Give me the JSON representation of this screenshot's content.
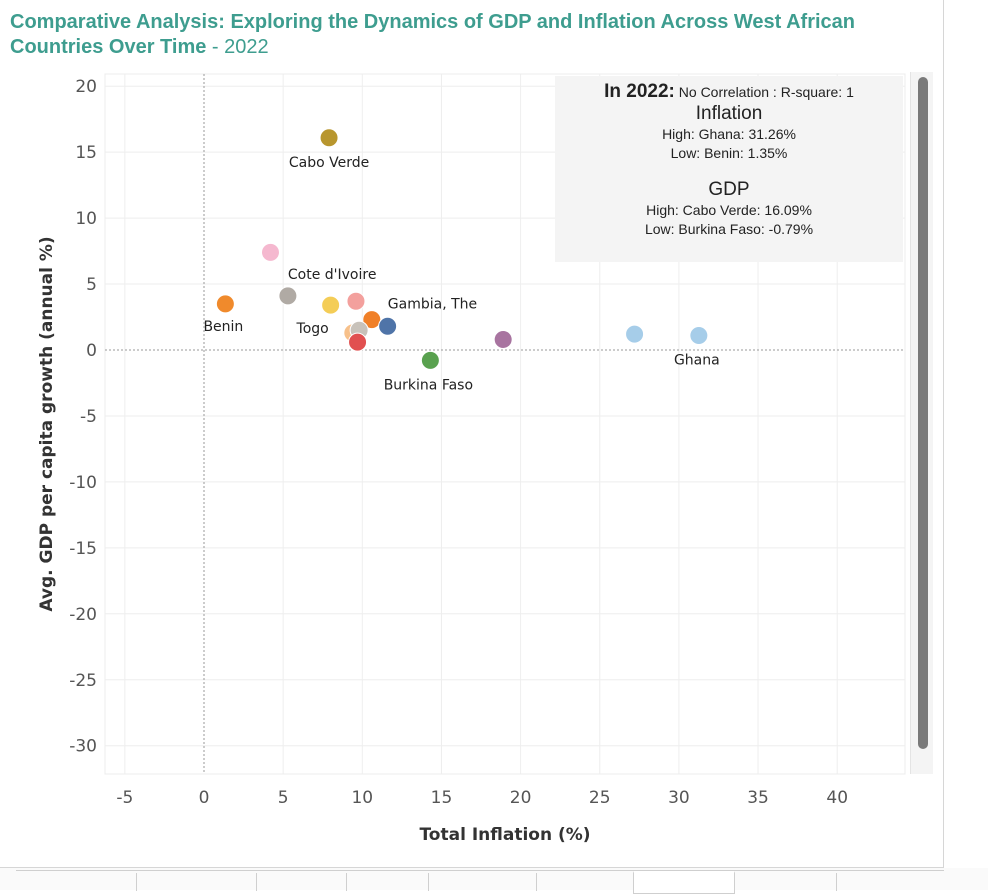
{
  "title": {
    "main": "Comparative Analysis: Exploring the Dynamics of GDP and Inflation Across West African Countries Over Time",
    "year_suffix": " - 2022"
  },
  "infobox": {
    "header_year": "In 2022:",
    "header_detail": "No Correlation : R-square: 1",
    "inflation_title": "Inflation",
    "inflation_high": "High: Ghana: 31.26%",
    "inflation_low": "Low: Benin: 1.35%",
    "gdp_title": "GDP",
    "gdp_high": "High: Cabo Verde: 16.09%",
    "gdp_low": "Low: Burkina Faso: -0.79%"
  },
  "chart_data": {
    "type": "scatter",
    "title": "Comparative Analysis: Exploring the Dynamics of GDP and Inflation Across West African Countries Over Time - 2022",
    "xlabel": "Total Inflation (%)",
    "ylabel": "Avg. GDP per capita growth (annual %)",
    "xlim": [
      -10,
      45
    ],
    "ylim": [
      -32,
      21
    ],
    "x_ticks": [
      -5,
      0,
      5,
      10,
      15,
      20,
      25,
      30,
      35,
      40
    ],
    "y_ticks": [
      20,
      15,
      10,
      5,
      0,
      -5,
      -10,
      -15,
      -20,
      -25,
      -30
    ],
    "grid": true,
    "zero_lines": true,
    "points": [
      {
        "label": "Cabo Verde",
        "x": 7.9,
        "y": 16.09,
        "color": "#b8962e"
      },
      {
        "label": "",
        "x": 4.2,
        "y": 7.4,
        "color": "#f5b8cf"
      },
      {
        "label": "Cote d'Ivoire",
        "x": 5.3,
        "y": 4.1,
        "color": "#b0aaa4"
      },
      {
        "label": "Benin",
        "x": 1.35,
        "y": 3.5,
        "color": "#f08a2c"
      },
      {
        "label": "Togo",
        "x": 8.0,
        "y": 3.4,
        "color": "#f4cd57"
      },
      {
        "label": "",
        "x": 9.6,
        "y": 3.7,
        "color": "#f3a09d"
      },
      {
        "label": "Gambia, The",
        "x": 10.6,
        "y": 2.3,
        "color": "#f08028"
      },
      {
        "label": "",
        "x": 11.6,
        "y": 1.8,
        "color": "#4f74a8"
      },
      {
        "label": "",
        "x": 9.4,
        "y": 1.3,
        "color": "#f7c08a"
      },
      {
        "label": "",
        "x": 9.8,
        "y": 1.5,
        "color": "#c8c2ba"
      },
      {
        "label": "",
        "x": 9.7,
        "y": 0.6,
        "color": "#e15050"
      },
      {
        "label": "Burkina Faso",
        "x": 14.3,
        "y": -0.79,
        "color": "#59a14f"
      },
      {
        "label": "",
        "x": 18.9,
        "y": 0.8,
        "color": "#a874a0"
      },
      {
        "label": "",
        "x": 27.2,
        "y": 1.2,
        "color": "#a6cde9"
      },
      {
        "label": "Ghana",
        "x": 31.26,
        "y": 1.1,
        "color": "#a6cde9"
      }
    ]
  }
}
